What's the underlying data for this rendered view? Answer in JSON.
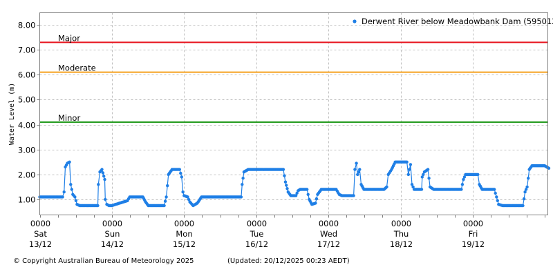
{
  "chart_data": {
    "type": "line",
    "title": "",
    "xlabel": "",
    "ylabel": "Water Level (m)",
    "ylim": [
      0.4,
      8.5
    ],
    "yticks": [
      1.0,
      2.0,
      3.0,
      4.0,
      5.0,
      6.0,
      7.0,
      8.0
    ],
    "ytick_labels": [
      "1.00",
      "2.00",
      "3.00",
      "4.00",
      "5.00",
      "6.00",
      "7.00",
      "8.00"
    ],
    "grid": true,
    "legend_position": "top-right",
    "x_ticks": [
      {
        "time": "0000",
        "day": "Sat",
        "date": "13/12"
      },
      {
        "time": "0000",
        "day": "Sun",
        "date": "14/12"
      },
      {
        "time": "0000",
        "day": "Mon",
        "date": "15/12"
      },
      {
        "time": "0000",
        "day": "Tue",
        "date": "16/12"
      },
      {
        "time": "0000",
        "day": "Wed",
        "date": "17/12"
      },
      {
        "time": "0000",
        "day": "Thu",
        "date": "18/12"
      },
      {
        "time": "0000",
        "day": "Fri",
        "date": "19/12"
      }
    ],
    "x_unit": "hours since 0000 Sat 13/12",
    "series": [
      {
        "name": "Derwent River below Meadowbank Dam (595012)",
        "color": "#1f7fe6",
        "x": [
          0,
          7.6,
          8.1,
          8.5,
          9.2,
          9.9,
          10.3,
          11.0,
          11.7,
          12.4,
          13.3,
          19.3,
          19.5,
          20.0,
          20.7,
          21.6,
          21.8,
          22.3,
          23.0,
          23.9,
          29.2,
          29.9,
          30.8,
          34.3,
          35.2,
          36.1,
          41.4,
          42.1,
          42.8,
          44.0,
          46.5,
          47.2,
          47.6,
          48.0,
          49.2,
          49.9,
          51.0,
          52.4,
          53.8,
          67.0,
          67.3,
          67.9,
          69.3,
          81.0,
          81.7,
          82.6,
          83.5,
          85.2,
          85.9,
          86.6,
          88.9,
          89.6,
          90.5,
          91.7,
          92.4,
          93.6,
          98.6,
          99.6,
          100.5,
          104.4,
          104.8,
          105.3,
          105.7,
          106.4,
          106.9,
          107.8,
          114.5,
          115.4,
          115.9,
          117.0,
          118.2,
          122.1,
          122.6,
          123.3,
          123.8,
          124.5,
          127.0,
          127.2,
          127.9,
          129.1,
          129.8,
          131.0,
          140.2,
          140.9,
          141.6,
          145.7,
          146.2,
          147.1,
          151.2,
          151.9,
          152.6,
          154.0,
          160.7,
          161.4,
          162.1,
          162.8,
          163.7,
          167.9,
          169.3
        ],
        "values": [
          1.1,
          1.1,
          1.3,
          2.3,
          2.45,
          2.5,
          1.6,
          1.2,
          1.1,
          0.8,
          0.75,
          0.75,
          1.6,
          2.1,
          2.2,
          1.8,
          1.0,
          0.8,
          0.75,
          0.75,
          0.95,
          1.1,
          1.1,
          1.1,
          0.9,
          0.75,
          0.75,
          1.1,
          2.0,
          2.2,
          2.2,
          1.9,
          1.3,
          1.15,
          1.1,
          0.9,
          0.75,
          0.85,
          1.1,
          1.1,
          1.6,
          2.1,
          2.2,
          2.2,
          1.7,
          1.3,
          1.15,
          1.15,
          1.35,
          1.4,
          1.4,
          1.0,
          0.8,
          0.85,
          1.2,
          1.4,
          1.4,
          1.2,
          1.15,
          1.15,
          2.2,
          2.45,
          2.0,
          2.2,
          1.6,
          1.4,
          1.4,
          1.5,
          2.0,
          2.2,
          2.5,
          2.5,
          2.0,
          2.4,
          1.6,
          1.4,
          1.4,
          1.9,
          2.1,
          2.2,
          1.5,
          1.4,
          1.4,
          1.8,
          2.0,
          2.0,
          1.6,
          1.4,
          1.4,
          1.1,
          0.8,
          0.75,
          0.75,
          1.3,
          1.5,
          2.2,
          2.35,
          2.35,
          2.25
        ]
      }
    ],
    "threshold_lines": [
      {
        "label": "Major",
        "value": 7.3,
        "color": "#e8141e"
      },
      {
        "label": "Moderate",
        "value": 6.1,
        "color": "#f5a01e"
      },
      {
        "label": "Minor",
        "value": 4.1,
        "color": "#249b1e"
      }
    ]
  },
  "legend": {
    "label": "Derwent River below Meadowbank Dam (595012)"
  },
  "footer": {
    "copyright": "© Copyright Australian Bureau of Meteorology 2025",
    "updated": "(Updated: 20/12/2025 00:23 AEDT)"
  }
}
